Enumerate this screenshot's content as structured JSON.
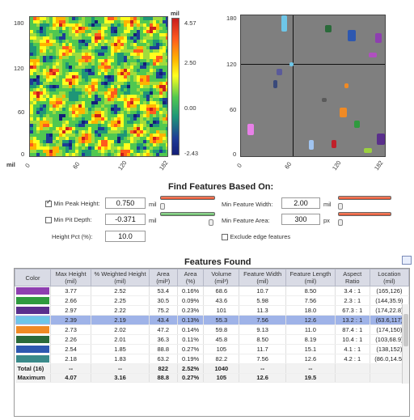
{
  "heatmap": {
    "unit": "mil",
    "colorbar_ticks": [
      "4.57",
      "2.50",
      "0.00",
      "-2.43"
    ],
    "y_ticks": [
      "180",
      "120",
      "60",
      "0"
    ],
    "x_ticks": [
      "0",
      "60",
      "120",
      "182"
    ],
    "axis_label": "mil"
  },
  "scatter": {
    "y_ticks": [
      "180",
      "120",
      "60",
      "0"
    ],
    "x_ticks": [
      "0",
      "60",
      "120",
      "182"
    ]
  },
  "find": {
    "title": "Find Features Based On:",
    "min_peak_label": "Min Peak Height:",
    "min_peak_value": "0.750",
    "min_pit_label": "Min Pit Depth:",
    "min_pit_value": "-0.371",
    "height_pct_label": "Height Pct (%):",
    "height_pct_value": "10.0",
    "min_width_label": "Min Feature Width:",
    "min_width_value": "2.00",
    "min_area_label": "Min Feature Area:",
    "min_area_value": "300",
    "exclude_label": "Exclude edge features",
    "unit_mil": "mil",
    "unit_px": "px"
  },
  "table": {
    "title": "Features Found",
    "headers": [
      "Color",
      "Max Height (mil)",
      "% Weighted Height (mil)",
      "Area (mil²)",
      "Area (%)",
      "Volume (mil³)",
      "Feature Width (mil)",
      "Feature Length (mil)",
      "Aspect Ratio",
      "Location (mil)"
    ],
    "rows": [
      {
        "color": "#8e3fb0",
        "c": [
          "3.77",
          "2.52",
          "53.4",
          "0.16%",
          "68.6",
          "10.7",
          "8.50",
          "3.4 : 1",
          "(165,126)"
        ]
      },
      {
        "color": "#2f9a3e",
        "c": [
          "2.66",
          "2.25",
          "30.5",
          "0.09%",
          "43.6",
          "5.98",
          "7.56",
          "2.3 : 1",
          "(144,35.9)"
        ]
      },
      {
        "color": "#5a2f8c",
        "c": [
          "2.97",
          "2.22",
          "75.2",
          "0.23%",
          "101",
          "11.3",
          "18.0",
          "67.3 : 1",
          "(174,22.8)"
        ]
      },
      {
        "color": "#6ec6e8",
        "c": [
          "2.39",
          "2.19",
          "43.4",
          "0.13%",
          "55.3",
          "7.56",
          "12.6",
          "13.2 : 1",
          "(63.6,117)"
        ],
        "sel": true
      },
      {
        "color": "#f08a24",
        "c": [
          "2.73",
          "2.02",
          "47.2",
          "0.14%",
          "59.8",
          "9.13",
          "11.0",
          "87.4 : 1",
          "(174,150)"
        ]
      },
      {
        "color": "#2a6a3a",
        "c": [
          "2.26",
          "2.01",
          "36.3",
          "0.11%",
          "45.8",
          "8.50",
          "8.19",
          "10.4 : 1",
          "(103,68.9)"
        ]
      },
      {
        "color": "#2e58b0",
        "c": [
          "2.54",
          "1.85",
          "88.8",
          "0.27%",
          "105",
          "11.7",
          "15.1",
          "4.1 : 1",
          "(138,152)"
        ]
      },
      {
        "color": "#3a8a8a",
        "c": [
          "2.18",
          "1.83",
          "63.2",
          "0.19%",
          "82.2",
          "7.56",
          "12.6",
          "4.2 : 1",
          "(86.0,14.5)"
        ]
      }
    ],
    "total": {
      "label": "Total (16)",
      "c": [
        "--",
        "--",
        "822",
        "2.52%",
        "1040",
        "--",
        "--",
        "",
        ""
      ]
    },
    "maximum": {
      "label": "Maximum",
      "c": [
        "4.07",
        "3.16",
        "88.8",
        "0.27%",
        "105",
        "12.6",
        "19.5",
        "",
        ""
      ]
    }
  }
}
